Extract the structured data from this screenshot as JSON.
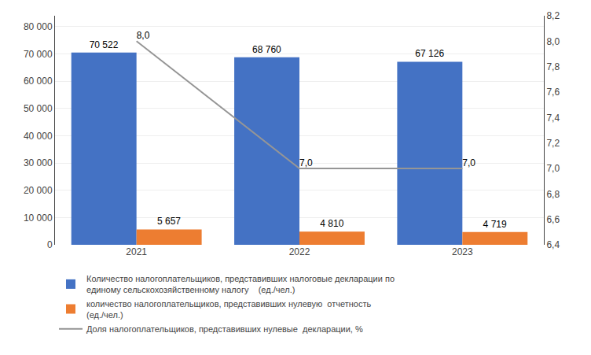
{
  "chart_data": {
    "type": "bar",
    "categories": [
      "2021",
      "2022",
      "2023"
    ],
    "series": [
      {
        "name": "Количество налогоплательщиков, представивших налоговые декларации по\nединому сельскохозяйственному налогу    (ед./чел.)",
        "color": "#4472C4",
        "values": [
          70522,
          68760,
          67126
        ],
        "value_labels": [
          "70 522",
          "68 760",
          "67 126"
        ]
      },
      {
        "name": "количество налогоплательщиков, представивших нулевую  отчетность\n(ед./чел.)",
        "color": "#ED7D31",
        "values": [
          5657,
          4810,
          4719
        ],
        "value_labels": [
          "5 657",
          "4 810",
          "4 719"
        ]
      },
      {
        "name": "Доля налогоплательщиков, представивших нулевые  декларации, %",
        "type": "line",
        "axis": "y2",
        "color": "#969696",
        "values": [
          8.0,
          7.0,
          7.0
        ],
        "value_labels": [
          "8,0",
          "7,0",
          "7,0"
        ]
      }
    ],
    "ylim": [
      0,
      84000
    ],
    "yticks": [
      0,
      {
        "value": 10000,
        "label": "10 000"
      },
      {
        "value": 20000,
        "label": "20 000"
      },
      {
        "value": 30000,
        "label": "30 000"
      },
      {
        "value": 40000,
        "label": "40 000"
      },
      {
        "value": 50000,
        "label": "50 000"
      },
      {
        "value": 60000,
        "label": "60 000"
      },
      {
        "value": 70000,
        "label": "70 000"
      },
      {
        "value": 80000,
        "label": "80 000"
      }
    ],
    "y2lim": [
      6.4,
      8.2
    ],
    "y2ticks": [
      {
        "value": 6.4,
        "label": "6,4"
      },
      {
        "value": 6.6,
        "label": "6,6"
      },
      {
        "value": 6.8,
        "label": "6,8"
      },
      {
        "value": 7.0,
        "label": "7,0"
      },
      {
        "value": 7.2,
        "label": "7,2"
      },
      {
        "value": 7.4,
        "label": "7,4"
      },
      {
        "value": 7.6,
        "label": "7,6"
      },
      {
        "value": 7.8,
        "label": "7,8"
      },
      {
        "value": 8.0,
        "label": "8,0"
      },
      {
        "value": 8.2,
        "label": "8,2"
      }
    ],
    "grid": true,
    "legend": "bottom",
    "data_labels": true
  }
}
